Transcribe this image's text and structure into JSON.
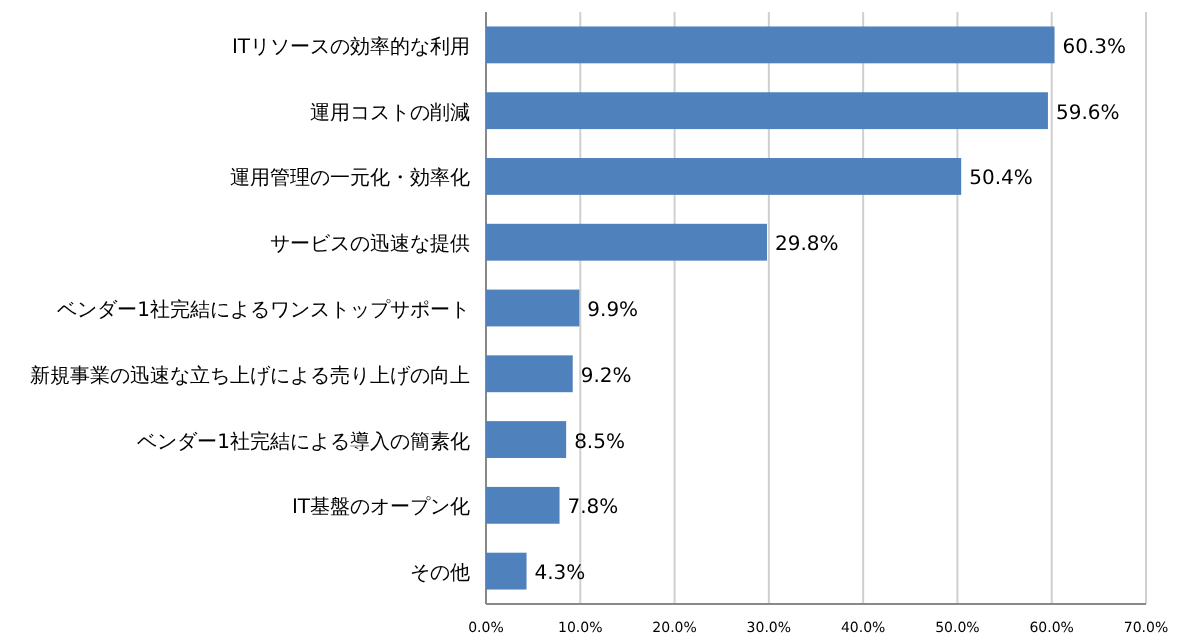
{
  "chart_data": {
    "type": "bar",
    "orientation": "horizontal",
    "categories": [
      "ITリソースの効率的な利用",
      "運用コストの削減",
      "運用管理の一元化・効率化",
      "サービスの迅速な提供",
      "ベンダー1社完結によるワンストップサポート",
      "新規事業の迅速な立ち上げによる売り上げの向上",
      "ベンダー1社完結による導入の簡素化",
      "IT基盤のオープン化",
      "その他"
    ],
    "values": [
      60.3,
      59.6,
      50.4,
      29.8,
      9.9,
      9.2,
      8.5,
      7.8,
      4.3
    ],
    "value_labels": [
      "60.3%",
      "59.6%",
      "50.4%",
      "29.8%",
      "9.9%",
      "9.2%",
      "8.5%",
      "7.8%",
      "4.3%"
    ],
    "color": "#4f81bd",
    "xlim": [
      0,
      70
    ],
    "xticks": [
      {
        "value": 0,
        "label": "0.0%"
      },
      {
        "value": 10,
        "label": "10.0%"
      },
      {
        "value": 20,
        "label": "20.0%"
      },
      {
        "value": 30,
        "label": "30.0%"
      },
      {
        "value": 40,
        "label": "40.0%"
      },
      {
        "value": 50,
        "label": "50.0%"
      },
      {
        "value": 60,
        "label": "60.0%"
      },
      {
        "value": 70,
        "label": "70.0%"
      }
    ],
    "grid": "x"
  }
}
